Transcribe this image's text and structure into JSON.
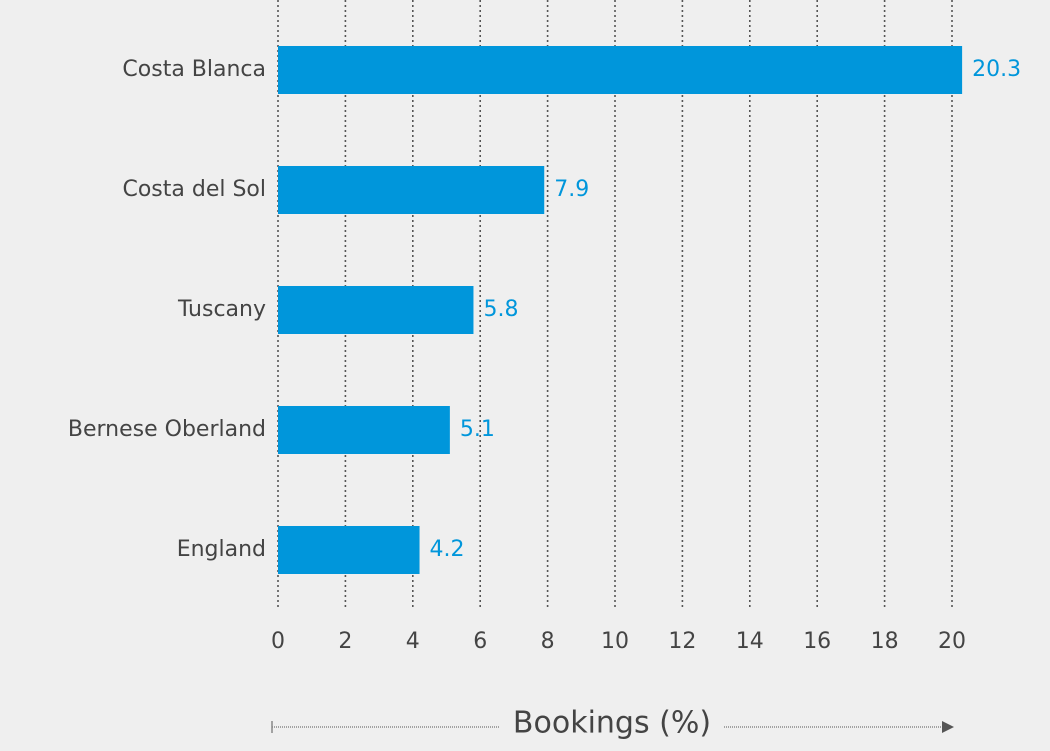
{
  "chart_data": {
    "type": "hbar",
    "x_label": "Bookings (%)",
    "categories": [
      "Costa Blanca",
      "Costa del Sol",
      "Tuscany",
      "Bernese Oberland",
      "England"
    ],
    "values": [
      20.3,
      7.9,
      5.8,
      5.1,
      4.2
    ],
    "color": "#0096db",
    "xlim": [
      0,
      20
    ],
    "xticks": [
      0,
      2,
      4,
      6,
      8,
      10,
      12,
      14,
      16,
      18,
      20
    ],
    "grid": true
  }
}
